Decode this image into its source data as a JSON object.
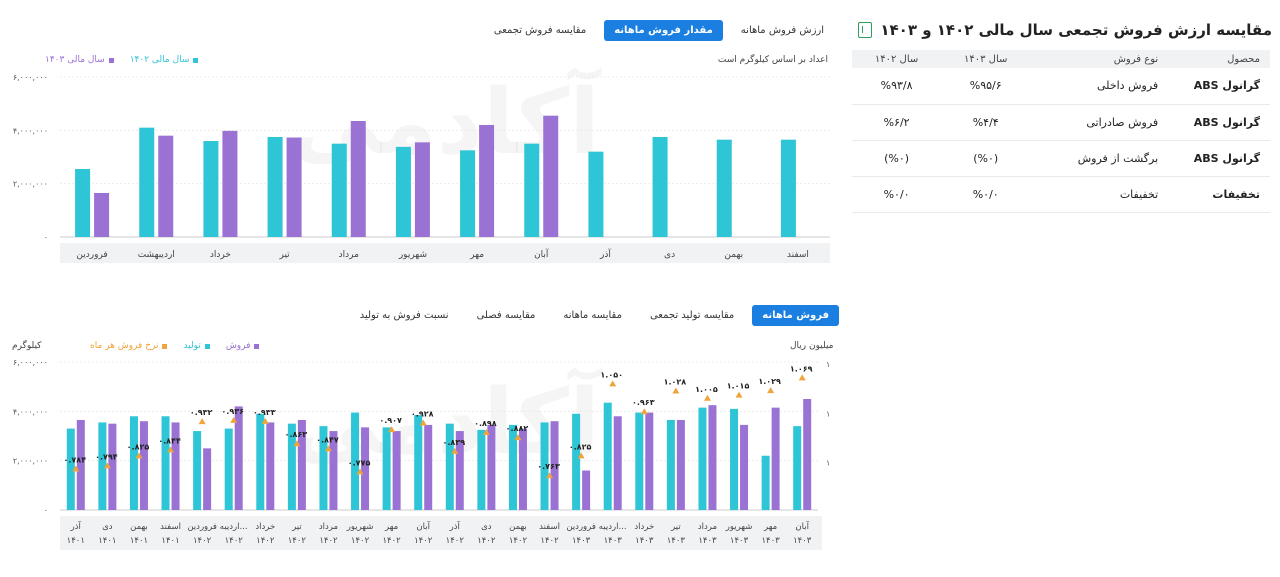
{
  "colors": {
    "cyan": "#2ec5d6",
    "purple": "#9a72d4",
    "orange": "#f0a43c",
    "accent": "#1a7fe0",
    "excel": "#2e9e5b"
  },
  "watermark": "آکادمی",
  "top_tabs": [
    {
      "label": "ارزش فروش ماهانه",
      "active": false
    },
    {
      "label": "مقدار فروش ماهانه",
      "active": true
    },
    {
      "label": "مقایسه فروش تجمعی",
      "active": false
    }
  ],
  "top_chart": {
    "note": "اعداد بر اساس کیلوگرم است",
    "legend": [
      "سال مالی ۱۴۰۲",
      "سال مالی ۱۴۰۳"
    ]
  },
  "table": {
    "title": "مقایسه ارزش فروش تجمعی سال مالی ۱۴۰۲ و ۱۴۰۳",
    "headers": [
      "محصول",
      "نوع فروش",
      "سال ۱۴۰۳",
      "سال ۱۴۰۲"
    ],
    "rows": [
      [
        "گرانول ABS",
        "فروش داخلی",
        "%۹۵/۶",
        "%۹۳/۸"
      ],
      [
        "گرانول ABS",
        "فروش صادراتی",
        "%۴/۴",
        "%۶/۲"
      ],
      [
        "گرانول ABS",
        "برگشت از فروش",
        "(%۰)",
        "(%۰)"
      ],
      [
        "تخفیفات",
        "تخفیفات",
        "%۰/۰",
        "%۰/۰"
      ]
    ]
  },
  "bottom_tabs": [
    {
      "label": "فروش ماهانه",
      "active": true
    },
    {
      "label": "مقایسه تولید تجمعی",
      "active": false
    },
    {
      "label": "مقایسه ماهانه",
      "active": false
    },
    {
      "label": "مقایسه فصلی",
      "active": false
    },
    {
      "label": "نسبت فروش به تولید",
      "active": false
    }
  ],
  "bottom_chart": {
    "left_unit": "کیلوگرم",
    "right_unit": "میلیون ریال",
    "legend": [
      "فروش",
      "تولید",
      "نرخ فروش هر ماه"
    ]
  },
  "chart_data": [
    {
      "type": "bar",
      "categories": [
        "فروردین",
        "اردیبهشت",
        "خرداد",
        "تیر",
        "مرداد",
        "شهریور",
        "مهر",
        "آبان",
        "آذر",
        "دی",
        "بهمن",
        "اسفند"
      ],
      "series": [
        {
          "name": "سال مالی ۱۴۰۲",
          "values": [
            2550000,
            4100000,
            3600000,
            3750000,
            3500000,
            3380000,
            3250000,
            3500000,
            3200000,
            3750000,
            3650000,
            3650000
          ]
        },
        {
          "name": "سال مالی ۱۴۰۳",
          "values": [
            1650000,
            3800000,
            3980000,
            3730000,
            4350000,
            3550000,
            4200000,
            4550000,
            null,
            null,
            null,
            null
          ]
        }
      ],
      "yticks": [
        "۰",
        "۲,۰۰۰,۰۰۰",
        "۴,۰۰۰,۰۰۰",
        "۶,۰۰۰,۰۰۰"
      ],
      "ylim": [
        0,
        6000000
      ]
    },
    {
      "type": "bar",
      "categories": [
        "آذر ۱۴۰۱",
        "دی ۱۴۰۱",
        "بهمن ۱۴۰۱",
        "اسفند ۱۴۰۱",
        "فروردین ۱۴۰۲",
        "اردیبه... ۱۴۰۲",
        "خرداد ۱۴۰۲",
        "تیر ۱۴۰۲",
        "مرداد ۱۴۰۲",
        "شهریور ۱۴۰۲",
        "مهر ۱۴۰۲",
        "آبان ۱۴۰۲",
        "آذر ۱۴۰۲",
        "دی ۱۴۰۲",
        "بهمن ۱۴۰۲",
        "اسفند ۱۴۰۲",
        "فروردین ۱۴۰۳",
        "اردیبه... ۱۴۰۳",
        "خرداد ۱۴۰۳",
        "تیر ۱۴۰۳",
        "مرداد ۱۴۰۳",
        "شهریور ۱۴۰۳",
        "مهر ۱۴۰۳",
        "آبان ۱۴۰۳"
      ],
      "series": [
        {
          "name": "تولید",
          "values": [
            3300000,
            3550000,
            3800000,
            3800000,
            3200000,
            3300000,
            3900000,
            3500000,
            3400000,
            3950000,
            3350000,
            3850000,
            3500000,
            3250000,
            3450000,
            3550000,
            3900000,
            4350000,
            3950000,
            3650000,
            4150000,
            4100000,
            2200000,
            3400000
          ]
        },
        {
          "name": "فروش",
          "values": [
            3650000,
            3500000,
            3600000,
            3550000,
            2500000,
            4200000,
            3550000,
            3650000,
            3200000,
            3350000,
            3200000,
            3450000,
            3200000,
            3450000,
            3300000,
            3600000,
            1600000,
            3800000,
            3950000,
            3650000,
            4250000,
            3450000,
            4150000,
            4500000
          ]
        },
        {
          "name": "نرخ فروش هر ماه",
          "values": [
            0.784,
            0.794,
            0.825,
            0.844,
            0.932,
            0.936,
            0.933,
            0.863,
            0.847,
            0.775,
            0.907,
            0.928,
            0.839,
            0.898,
            0.882,
            0.763,
            0.825,
            1.05,
            0.963,
            1.028,
            1.005,
            1.015,
            1.029,
            1.069
          ]
        }
      ],
      "rate_labels": [
        "۰.۷۸۴",
        "۰.۷۹۴",
        "۰.۸۲۵",
        "۰.۸۴۴",
        "۰.۹۳۲",
        "۰.۹۳۶",
        "۰.۹۳۳",
        "۰.۸۶۳",
        "۰.۸۴۷",
        "۰.۷۷۵",
        "۰.۹۰۷",
        "۰.۹۲۸",
        "۰.۸۳۹",
        "۰.۸۹۸",
        "۰.۸۸۲",
        "۰.۷۶۳",
        "۰.۸۲۵",
        "۱.۰۵۰",
        "۰.۹۶۳",
        "۱.۰۲۸",
        "۱.۰۰۵",
        "۱.۰۱۵",
        "۱.۰۲۹",
        "۱.۰۶۹"
      ],
      "yticks": [
        "۰",
        "۲,۰۰۰,۰۰۰",
        "۴,۰۰۰,۰۰۰",
        "۶,۰۰۰,۰۰۰"
      ],
      "right_ticks": [
        "۱",
        "۱",
        "۱"
      ],
      "ylim": [
        0,
        6000000
      ]
    }
  ]
}
